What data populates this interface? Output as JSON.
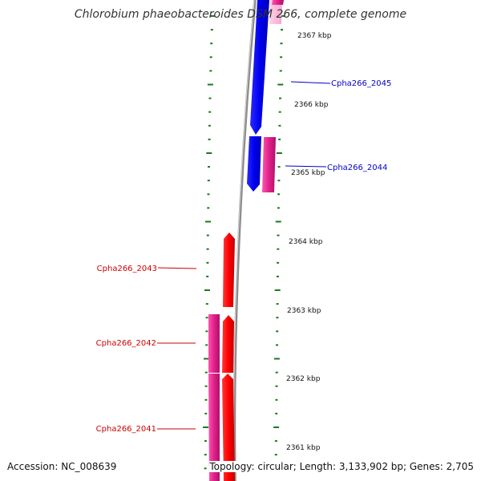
{
  "title": "Chlorobium phaeobacteroides DSM 266, complete genome",
  "accession": "Accession: NC_008639",
  "summary": "Topology: circular; Length: 3,133,902 bp; Genes: 2,705",
  "colors": {
    "backbone": "#8c8c8c",
    "scale_ticks": "#1a7a1a",
    "forward_gene": "#0000ff",
    "reverse_gene": "#ff0000",
    "feature_pink": "#e0218a",
    "forward_label": "#0000cc",
    "reverse_label": "#cc0000"
  },
  "kbp_ticks": [
    "2367 kbp",
    "2366 kbp",
    "2365 kbp",
    "2364 kbp",
    "2363 kbp",
    "2362 kbp",
    "2361 kbp"
  ],
  "genes": [
    {
      "name": "Cpha266_2045",
      "strand": "forward"
    },
    {
      "name": "Cpha266_2044",
      "strand": "forward"
    },
    {
      "name": "Cpha266_2043",
      "strand": "reverse"
    },
    {
      "name": "Cpha266_2042",
      "strand": "reverse"
    },
    {
      "name": "Cpha266_2041",
      "strand": "reverse"
    }
  ]
}
